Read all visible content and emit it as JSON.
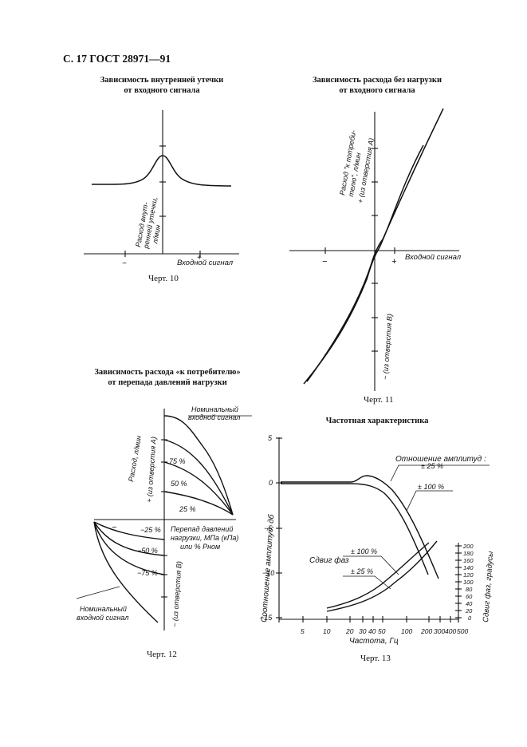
{
  "header": "С. 17 ГОСТ 28971—91",
  "fig10": {
    "title_line1": "Зависимость внутренней утечки",
    "title_line2": "от входного сигнала",
    "ylabel_line1": "Расход внут-",
    "ylabel_line2": "ренней утечки,",
    "ylabel_line3": "л/мин",
    "xlabel": "Входной сигнал",
    "minus": "−",
    "plus": "+",
    "caption": "Черт. 10"
  },
  "fig11": {
    "title_line1": "Зависимость расхода без нагрузки",
    "title_line2": "от входного сигнала",
    "ylabel_line1": "Расход \"к потреби-",
    "ylabel_line2": "телю\", л/мин",
    "ylabel_line3": "+ (из отверстия А)",
    "ylabel_neg": "− (из отверстия В)",
    "xlabel": "Входной сигнал",
    "minus": "−",
    "plus": "+",
    "caption": "Черт. 11"
  },
  "fig12": {
    "title_line1": "Зависимость расхода «к потребителю»",
    "title_line2": "от перепада давлений нагрузки",
    "ylabel_line1": "Расход, л/мин",
    "ylabel_line2": "+ (из отверстия А)",
    "ylabel_neg": "− (из отверстия В)",
    "xlabel_line1": "Перепад давлений",
    "xlabel_line2": "нагрузки, МПа (кПа)",
    "xlabel_line3": "или % Рном",
    "nominal_top_line1": "Номинальный",
    "nominal_top_line2": "входной сигнал",
    "nominal_bottom_line1": "Номинальный",
    "nominal_bottom_line2": "входной сигнал",
    "curve_labels_pos": [
      "75 %",
      "50 %",
      "25 %"
    ],
    "curve_labels_neg": [
      "−25 %",
      "−50 %",
      "−75 %"
    ],
    "minus": "−",
    "caption": "Черт. 12"
  },
  "fig13": {
    "title": "Частотная характеристика",
    "ylabel": "Соотношение амплитуд, дб",
    "y_ticks": [
      "5",
      "0",
      "−5",
      "−10",
      "−15"
    ],
    "xlabel": "Частота, Гц",
    "x_ticks": [
      "5",
      "10",
      "20",
      "30",
      "40",
      "50",
      "100",
      "200",
      "300",
      "400",
      "500"
    ],
    "y2label": "Сдвиг фаз, градусы",
    "y2_ticks": [
      "200",
      "180",
      "160",
      "140",
      "120",
      "100",
      "80",
      "60",
      "40",
      "20",
      "0"
    ],
    "amp_label": "Отношение амплитуд :",
    "amp_25": "± 25 %",
    "amp_100": "± 100 %",
    "phase_label": "Сдвиг фаз",
    "phase_100": "± 100 %",
    "phase_25": "± 25 %",
    "caption": "Черт. 13"
  }
}
